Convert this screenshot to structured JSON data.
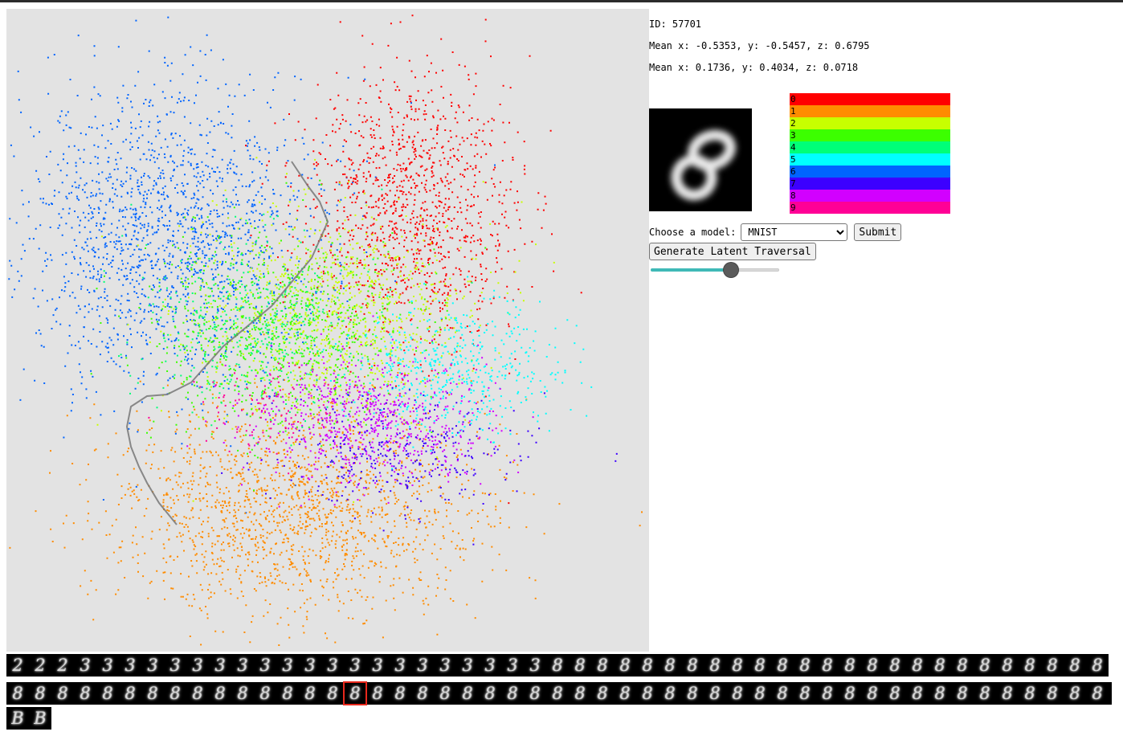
{
  "info": {
    "id_text": "ID: 57701",
    "mean1_text": "Mean x: -0.5353, y: -0.5457, z: 0.6795",
    "mean2_text": "Mean x: 0.1736, y: 0.4034, z: 0.0718"
  },
  "preview": {
    "digit": "8"
  },
  "legend": [
    {
      "label": "0",
      "color": "#ff0000"
    },
    {
      "label": "1",
      "color": "#ff8c00"
    },
    {
      "label": "2",
      "color": "#c8ff00"
    },
    {
      "label": "3",
      "color": "#3cff00"
    },
    {
      "label": "4",
      "color": "#00ff78"
    },
    {
      "label": "5",
      "color": "#00ffff"
    },
    {
      "label": "6",
      "color": "#0064ff"
    },
    {
      "label": "7",
      "color": "#3c00ff"
    },
    {
      "label": "8",
      "color": "#d200ff"
    },
    {
      "label": "9",
      "color": "#ff0096"
    }
  ],
  "controls": {
    "model_label": "Choose a model:",
    "model_selected": "MNIST",
    "submit_label": "Submit",
    "traversal_label": "Generate Latent Traversal",
    "slider_value": 0.625
  },
  "traversal": {
    "row1": [
      "2",
      "2",
      "2",
      "3",
      "3",
      "3",
      "3",
      "3",
      "3",
      "3",
      "3",
      "3",
      "3",
      "3",
      "3",
      "3",
      "3",
      "3",
      "3",
      "3",
      "3",
      "3",
      "3",
      "3",
      "8",
      "8",
      "8",
      "8",
      "8",
      "8",
      "8",
      "8",
      "8",
      "8",
      "8",
      "8",
      "8",
      "8",
      "8",
      "8",
      "8",
      "8",
      "8",
      "8",
      "8",
      "8",
      "8",
      "8",
      "8"
    ],
    "row2": [
      "8",
      "8",
      "8",
      "8",
      "8",
      "8",
      "8",
      "8",
      "8",
      "8",
      "8",
      "8",
      "8",
      "8",
      "8",
      "8",
      "8",
      "8",
      "8",
      "8",
      "8",
      "8",
      "8",
      "8",
      "8",
      "8",
      "8",
      "8",
      "8",
      "8",
      "8",
      "8",
      "8",
      "8",
      "8",
      "8",
      "8",
      "8",
      "8",
      "8",
      "8",
      "8",
      "8",
      "8",
      "8",
      "8",
      "8",
      "8",
      "8"
    ],
    "row3": [
      "B",
      "B"
    ],
    "selected_row": 2,
    "selected_index": 15
  }
}
